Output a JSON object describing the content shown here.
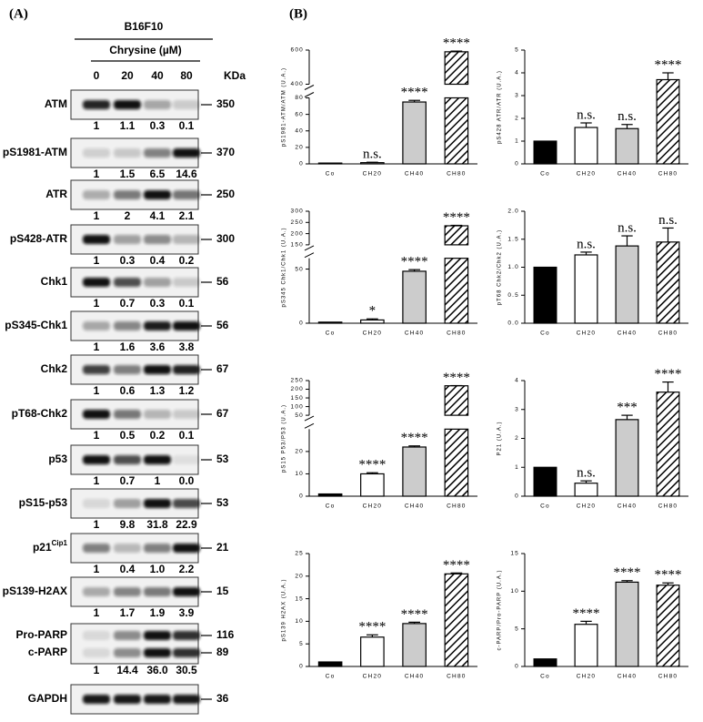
{
  "panel_a": {
    "label": "(A)",
    "cell_line": "B16F10",
    "treatment": "Chrysine (µM)",
    "doses": [
      "0",
      "20",
      "40",
      "80"
    ],
    "kda_header": "KDa",
    "blots": [
      {
        "name": "ATM",
        "kda": "350",
        "quant": [
          "1",
          "1.1",
          "0.3",
          "0.1"
        ]
      },
      {
        "name": "pS1981-ATM",
        "kda": "370",
        "quant": [
          "1",
          "1.5",
          "6.5",
          "14.6"
        ]
      },
      {
        "name": "ATR",
        "kda": "250",
        "quant": [
          "1",
          "2",
          "4.1",
          "2.1"
        ]
      },
      {
        "name": "pS428-ATR",
        "kda": "300",
        "quant": [
          "1",
          "0.3",
          "0.4",
          "0.2"
        ]
      },
      {
        "name": "Chk1",
        "kda": "56",
        "quant": [
          "1",
          "0.7",
          "0.3",
          "0.1"
        ]
      },
      {
        "name": "pS345-Chk1",
        "kda": "56",
        "quant": [
          "1",
          "1.6",
          "3.6",
          "3.8"
        ]
      },
      {
        "name": "Chk2",
        "kda": "67",
        "quant": [
          "1",
          "0.6",
          "1.3",
          "1.2"
        ]
      },
      {
        "name": "pT68-Chk2",
        "kda": "67",
        "quant": [
          "1",
          "0.5",
          "0.2",
          "0.1"
        ]
      },
      {
        "name": "p53",
        "kda": "53",
        "quant": [
          "1",
          "0.7",
          "1",
          "0.0"
        ]
      },
      {
        "name": "pS15-p53",
        "kda": "53",
        "quant": [
          "1",
          "9.8",
          "31.8",
          "22.9"
        ]
      },
      {
        "name": "p21",
        "superscript": "Cip1",
        "kda": "21",
        "quant": [
          "1",
          "0.4",
          "1.0",
          "2.2"
        ]
      },
      {
        "name": "pS139-H2AX",
        "kda": "15",
        "quant": [
          "1",
          "1.7",
          "1.9",
          "3.9"
        ]
      },
      {
        "name": "Pro-PARP",
        "name2": "c-PARP",
        "kda": "116",
        "kda2": "89",
        "quant": [
          "1",
          "14.4",
          "36.0",
          "30.5"
        ]
      },
      {
        "name": "GAPDH",
        "kda": "36"
      }
    ]
  },
  "panel_b": {
    "label": "(B)",
    "charts": [
      {
        "type": "bar",
        "ylabel": "pS1981-ATM/ATM (U.A.)",
        "categories": [
          "Co",
          "CH20",
          "CH40",
          "CH80"
        ],
        "values": [
          1,
          1.5,
          75,
          590
        ],
        "errors": [
          0,
          0.5,
          2,
          4
        ],
        "significance": [
          null,
          "n.s.",
          "****",
          "****"
        ],
        "colors": [
          "#000000",
          "#ffffff",
          "#cccccc",
          "#ffffff"
        ],
        "hatch": [
          false,
          false,
          false,
          true
        ],
        "segments": [
          {
            "ylim": [
              0,
              80
            ],
            "yticks": [
              0,
              20,
              40,
              60,
              80
            ]
          },
          {
            "ylim": [
              400,
              600
            ],
            "yticks": [
              400,
              600
            ]
          }
        ]
      },
      {
        "type": "bar",
        "ylabel": "pS428 ATR/ATR (U.A.)",
        "categories": [
          "Co",
          "CH20",
          "CH40",
          "CH80"
        ],
        "values": [
          1,
          1.6,
          1.55,
          3.7
        ],
        "errors": [
          0,
          0.2,
          0.18,
          0.3
        ],
        "significance": [
          null,
          "n.s.",
          "n.s.",
          "****"
        ],
        "colors": [
          "#000000",
          "#ffffff",
          "#cccccc",
          "#ffffff"
        ],
        "hatch": [
          false,
          false,
          false,
          true
        ],
        "ylim": [
          0,
          5
        ],
        "yticks": [
          0,
          1,
          2,
          3,
          4,
          5
        ]
      },
      {
        "type": "bar",
        "ylabel": "pS345 Chk1/Chk1 (U.A.)",
        "categories": [
          "Co",
          "CH20",
          "CH40",
          "CH80"
        ],
        "values": [
          1,
          3,
          48,
          235
        ],
        "errors": [
          0,
          1,
          1.5,
          2
        ],
        "significance": [
          null,
          "*",
          "****",
          "****"
        ],
        "colors": [
          "#000000",
          "#ffffff",
          "#cccccc",
          "#ffffff"
        ],
        "hatch": [
          false,
          false,
          false,
          true
        ],
        "segments": [
          {
            "ylim": [
              0,
              60
            ],
            "yticks": [
              0,
              50
            ]
          },
          {
            "ylim": [
              150,
              300
            ],
            "yticks": [
              150,
              200,
              250,
              300
            ]
          }
        ]
      },
      {
        "type": "bar",
        "ylabel": "pT68 Chk2/Chk2 (U.A.)",
        "categories": [
          "Co",
          "CH20",
          "CH40",
          "CH80"
        ],
        "values": [
          1,
          1.22,
          1.38,
          1.45
        ],
        "errors": [
          0,
          0.05,
          0.18,
          0.25
        ],
        "significance": [
          null,
          "n.s.",
          "n.s.",
          "n.s."
        ],
        "colors": [
          "#000000",
          "#ffffff",
          "#cccccc",
          "#ffffff"
        ],
        "hatch": [
          false,
          false,
          false,
          true
        ],
        "ylim": [
          0,
          2
        ],
        "yticks": [
          {
            "value": 0,
            "label": "0.0"
          },
          {
            "value": 0.5,
            "label": "0.5"
          },
          {
            "value": 1,
            "label": "1.0"
          },
          {
            "value": 1.5,
            "label": "1.5"
          },
          {
            "value": 2,
            "label": "2.0"
          }
        ]
      },
      {
        "type": "bar",
        "ylabel": "pS15 P53/P53 (U.A.)",
        "categories": [
          "Co",
          "CH20",
          "CH40",
          "CH80"
        ],
        "values": [
          1,
          10,
          22,
          220
        ],
        "errors": [
          0,
          0.5,
          0.5,
          1
        ],
        "significance": [
          null,
          "****",
          "****",
          "****"
        ],
        "colors": [
          "#000000",
          "#ffffff",
          "#cccccc",
          "#ffffff"
        ],
        "hatch": [
          false,
          false,
          false,
          true
        ],
        "segments": [
          {
            "ylim": [
              0,
              30
            ],
            "yticks": [
              0,
              10,
              20
            ]
          },
          {
            "ylim": [
              50,
              250
            ],
            "yticks": [
              50,
              100,
              150,
              200,
              250
            ]
          }
        ]
      },
      {
        "type": "bar",
        "ylabel": "P21 (U.A.)",
        "categories": [
          "Co",
          "CH20",
          "CH40",
          "CH80"
        ],
        "values": [
          1,
          0.45,
          2.65,
          3.6
        ],
        "errors": [
          0,
          0.08,
          0.15,
          0.35
        ],
        "significance": [
          null,
          "n.s.",
          "***",
          "****"
        ],
        "colors": [
          "#000000",
          "#ffffff",
          "#cccccc",
          "#ffffff"
        ],
        "hatch": [
          false,
          false,
          false,
          true
        ],
        "ylim": [
          0,
          4
        ],
        "yticks": [
          0,
          1,
          2,
          3,
          4
        ]
      },
      {
        "type": "bar",
        "ylabel": "pS139 H2AX (U.A.)",
        "categories": [
          "Co",
          "CH20",
          "CH40",
          "CH80"
        ],
        "values": [
          1,
          6.5,
          9.5,
          20.5
        ],
        "errors": [
          0,
          0.5,
          0.3,
          0.2
        ],
        "significance": [
          null,
          "****",
          "****",
          "****"
        ],
        "colors": [
          "#000000",
          "#ffffff",
          "#cccccc",
          "#ffffff"
        ],
        "hatch": [
          false,
          false,
          false,
          true
        ],
        "ylim": [
          0,
          25
        ],
        "yticks": [
          0,
          5,
          10,
          15,
          20,
          25
        ]
      },
      {
        "type": "bar",
        "ylabel": "c-PARP/Pro-PARP (U.A.)",
        "categories": [
          "Co",
          "CH20",
          "CH40",
          "CH80"
        ],
        "values": [
          1,
          5.6,
          11.2,
          10.8
        ],
        "errors": [
          0,
          0.4,
          0.2,
          0.3
        ],
        "significance": [
          null,
          "****",
          "****",
          "****"
        ],
        "colors": [
          "#000000",
          "#ffffff",
          "#cccccc",
          "#ffffff"
        ],
        "hatch": [
          false,
          false,
          false,
          true
        ],
        "ylim": [
          0,
          15
        ],
        "yticks": [
          0,
          5,
          10,
          15
        ]
      }
    ]
  }
}
